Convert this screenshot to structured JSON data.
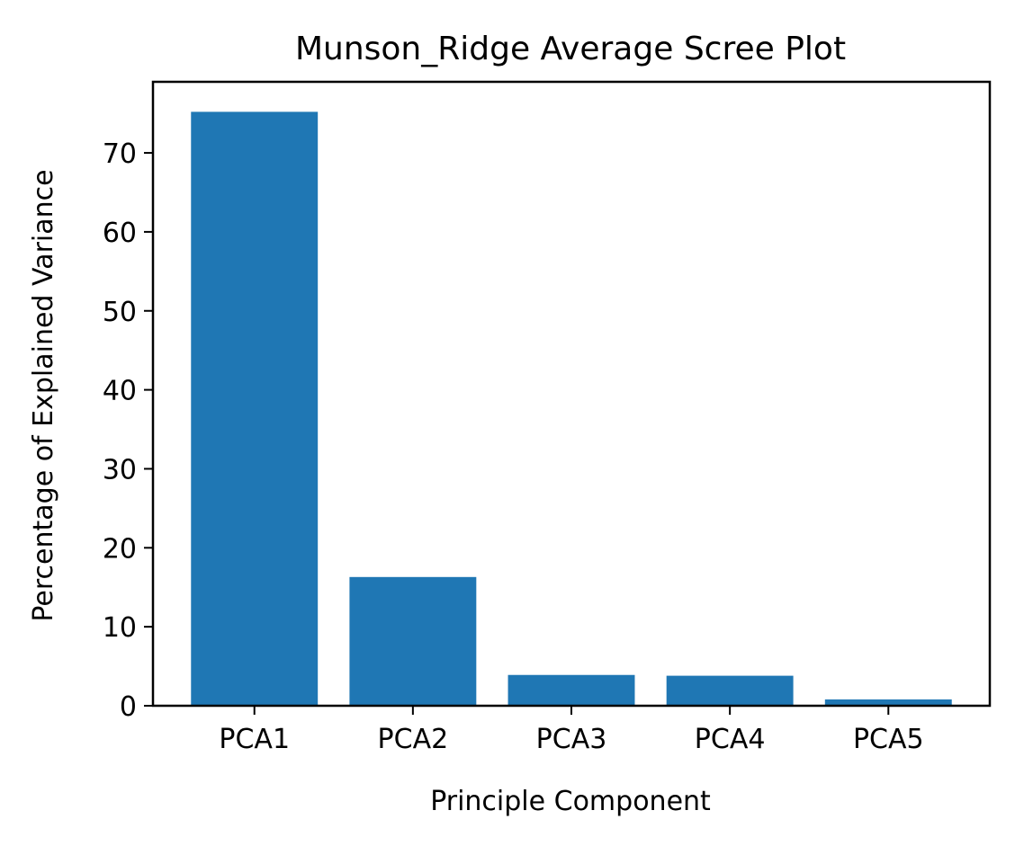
{
  "chart_data": {
    "type": "bar",
    "title": "Munson_Ridge Average Scree Plot",
    "xlabel": "Principle Component",
    "ylabel": "Percentage of Explained Variance",
    "categories": [
      "PCA1",
      "PCA2",
      "PCA3",
      "PCA4",
      "PCA5"
    ],
    "values": [
      75.2,
      16.3,
      3.9,
      3.8,
      0.8
    ],
    "ylim": [
      0,
      79
    ],
    "yticks": [
      0,
      10,
      20,
      30,
      40,
      50,
      60,
      70
    ],
    "bar_color": "#1f77b4",
    "grid": false,
    "legend": "none"
  }
}
